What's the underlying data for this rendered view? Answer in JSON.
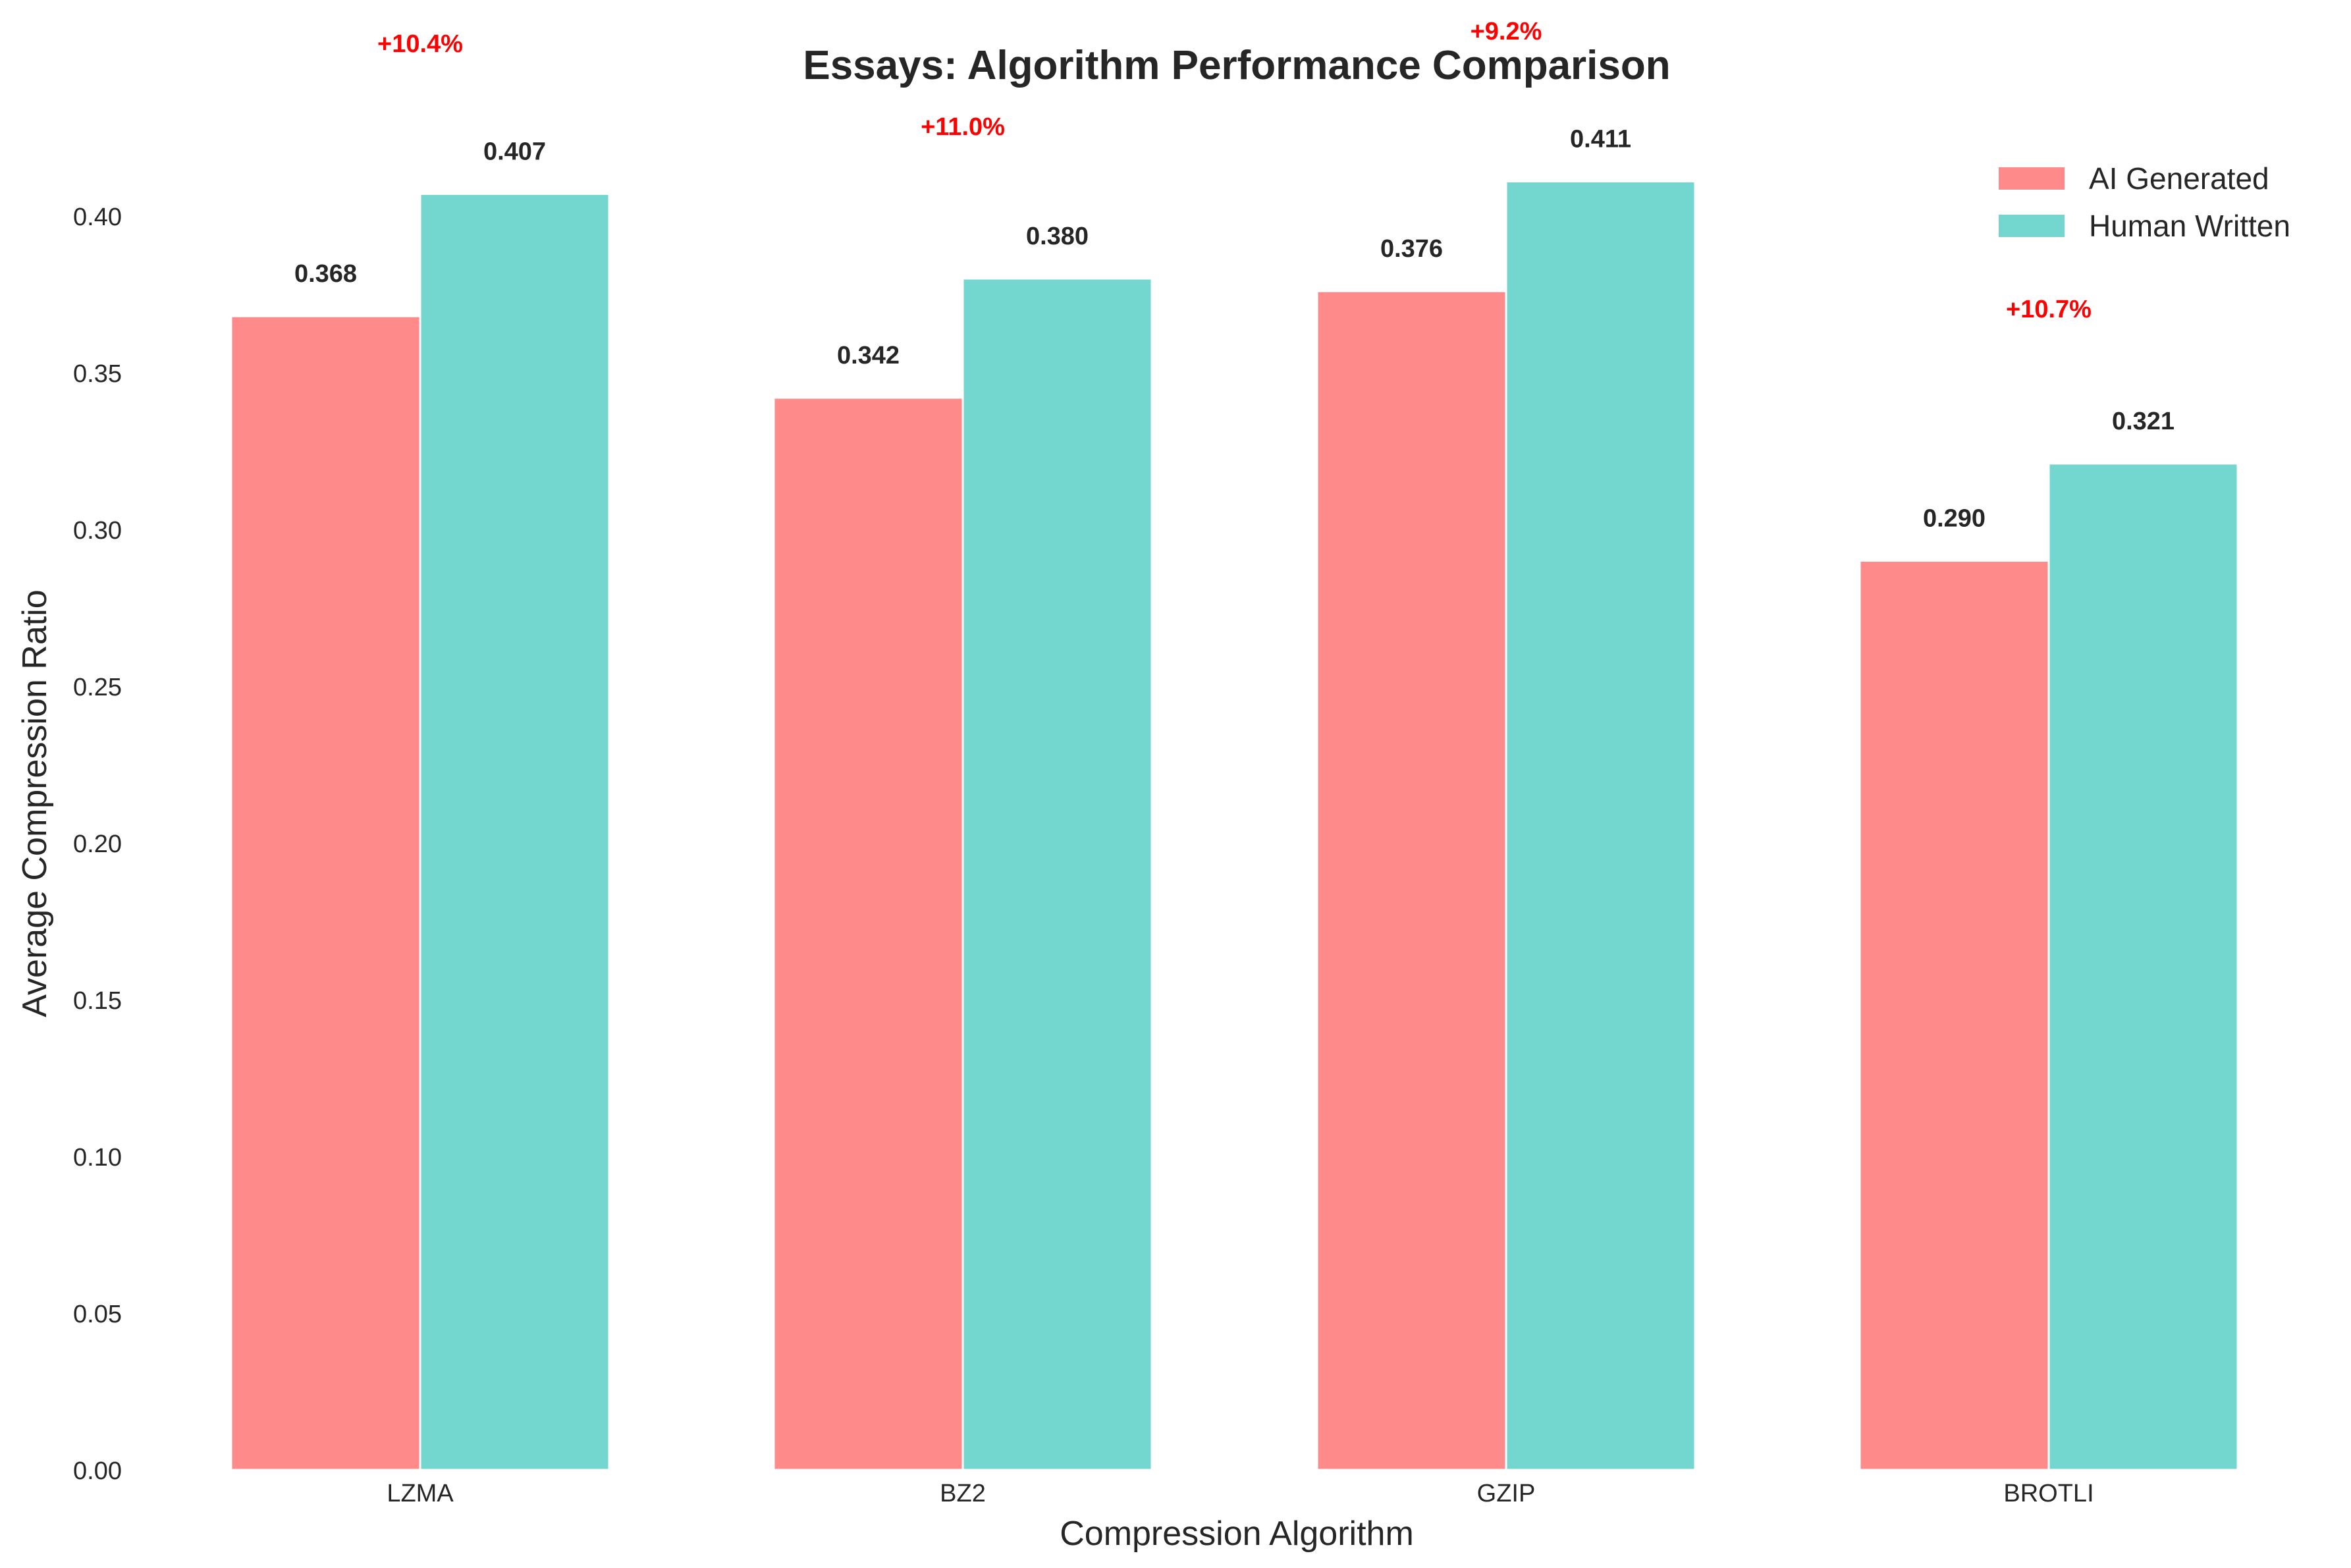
{
  "chart_data": {
    "type": "bar",
    "title": "Essays: Algorithm Performance Comparison",
    "xlabel": "Compression Algorithm",
    "ylabel": "Average Compression Ratio",
    "categories": [
      "LZMA",
      "BZ2",
      "GZIP",
      "BROTLI"
    ],
    "series": [
      {
        "name": "AI Generated",
        "color": "#FF8A8A",
        "values": [
          0.368,
          0.342,
          0.376,
          0.29
        ],
        "labels": [
          "0.368",
          "0.342",
          "0.376",
          "0.290"
        ]
      },
      {
        "name": "Human Written",
        "color": "#74D7CF",
        "values": [
          0.407,
          0.38,
          0.411,
          0.321
        ],
        "labels": [
          "0.407",
          "0.380",
          "0.411",
          "0.321"
        ]
      }
    ],
    "differences": [
      "+10.4%",
      "+11.0%",
      "+9.2%",
      "+10.7%"
    ],
    "difference_color": "#FF0000",
    "ylim": [
      0,
      0.43
    ],
    "yticks": [
      "0.00",
      "0.05",
      "0.10",
      "0.15",
      "0.20",
      "0.25",
      "0.30",
      "0.35",
      "0.40"
    ],
    "grid": false,
    "legend_position": "top-right"
  }
}
